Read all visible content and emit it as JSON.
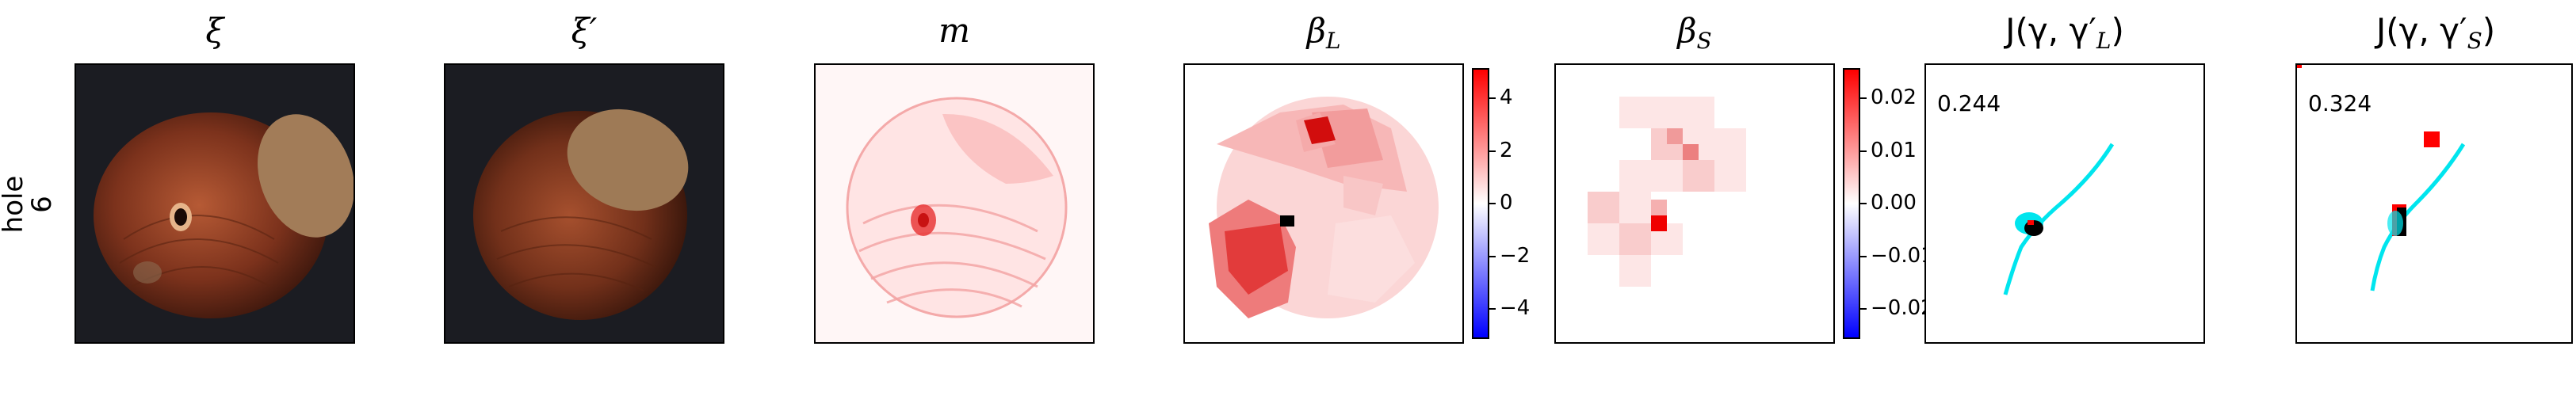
{
  "row_label": {
    "line1": "hole",
    "line2": "6"
  },
  "titles": {
    "xi": "ξ",
    "xi_prime": "ξ′",
    "m": "m",
    "beta_l_base": "β",
    "beta_l_sub": "L",
    "beta_s_base": "β",
    "beta_s_sub": "S",
    "j_l": "J(γ, γ′",
    "j_l_sub": "L",
    "j_l_close": ")",
    "j_s": "J(γ, γ′",
    "j_s_sub": "S",
    "j_s_close": ")"
  },
  "colorbar_l": {
    "ticks": [
      "4",
      "2",
      "0",
      "−2",
      "−4"
    ]
  },
  "colorbar_s": {
    "ticks": [
      "0.02",
      "0.01",
      "0.00",
      "−0.01",
      "−0.02"
    ]
  },
  "scores": {
    "j_l": "0.244",
    "j_s": "0.324"
  },
  "colors": {
    "positive": "#ff0000",
    "negative": "#0000ff",
    "mask": "#00e5ee",
    "overlay": "#000000"
  }
}
